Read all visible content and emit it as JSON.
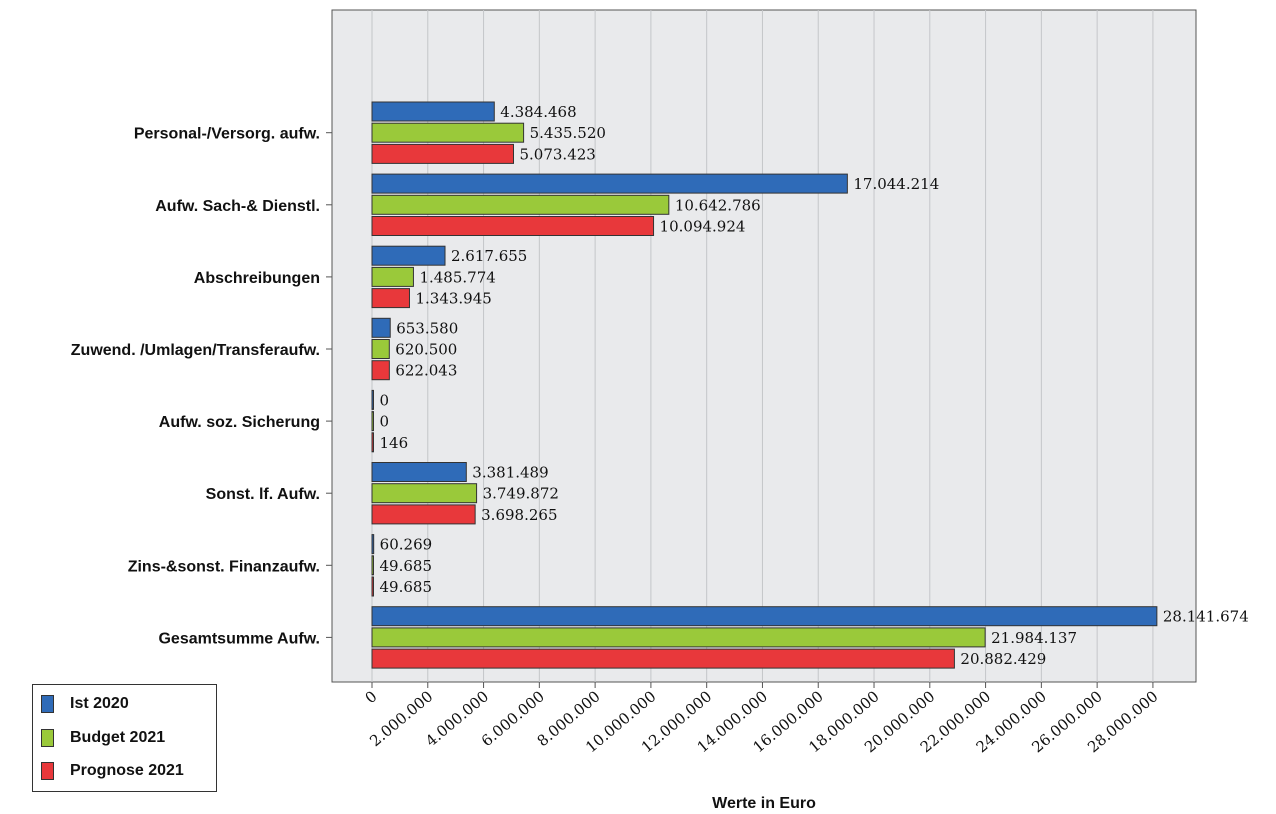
{
  "chart_data": {
    "type": "bar",
    "orientation": "horizontal",
    "categories": [
      "Personal-/Versorg. aufw.",
      "Aufw. Sach-& Dienstl.",
      "Abschreibungen",
      "Zuwend. /Umlagen/Transferaufw.",
      "Aufw. soz. Sicherung",
      "Sonst. lf. Aufw.",
      "Zins-&sonst. Finanzaufw.",
      "Gesamtsumme Aufw."
    ],
    "series": [
      {
        "name": "Ist 2020",
        "color": "#2f6bb8",
        "values": [
          4384468,
          17044214,
          2617655,
          653580,
          0,
          3381489,
          60269,
          28141674
        ],
        "labels": [
          "4.384.468",
          "17.044.214",
          "2.617.655",
          "653.580",
          "0",
          "3.381.489",
          "60.269",
          "28.141.674"
        ]
      },
      {
        "name": "Budget 2021",
        "color": "#9ac93a",
        "values": [
          5435520,
          10642786,
          1485774,
          620500,
          0,
          3749872,
          49685,
          21984137
        ],
        "labels": [
          "5.435.520",
          "10.642.786",
          "1.485.774",
          "620.500",
          "0",
          "3.749.872",
          "49.685",
          "21.984.137"
        ]
      },
      {
        "name": "Prognose 2021",
        "color": "#e8383b",
        "values": [
          5073423,
          10094924,
          1343945,
          622043,
          146,
          3698265,
          49685,
          20882429
        ],
        "labels": [
          "5.073.423",
          "10.094.924",
          "1.343.945",
          "622.043",
          "146",
          "3.698.265",
          "49.685",
          "20.882.429"
        ]
      }
    ],
    "x_ticks": [
      0,
      2000000,
      4000000,
      6000000,
      8000000,
      10000000,
      12000000,
      14000000,
      16000000,
      18000000,
      20000000,
      22000000,
      24000000,
      26000000,
      28000000
    ],
    "x_tick_labels": [
      "0",
      "2.000.000",
      "4.000.000",
      "6.000.000",
      "8.000.000",
      "10.000.000",
      "12.000.000",
      "14.000.000",
      "16.000.000",
      "18.000.000",
      "20.000.000",
      "22.000.000",
      "24.000.000",
      "26.000.000",
      "28.000.000"
    ],
    "xlim": [
      0,
      28700000
    ],
    "xlabel": "Werte in Euro",
    "ylabel": "",
    "title": "",
    "grid": true,
    "legend": "bottom-left"
  }
}
